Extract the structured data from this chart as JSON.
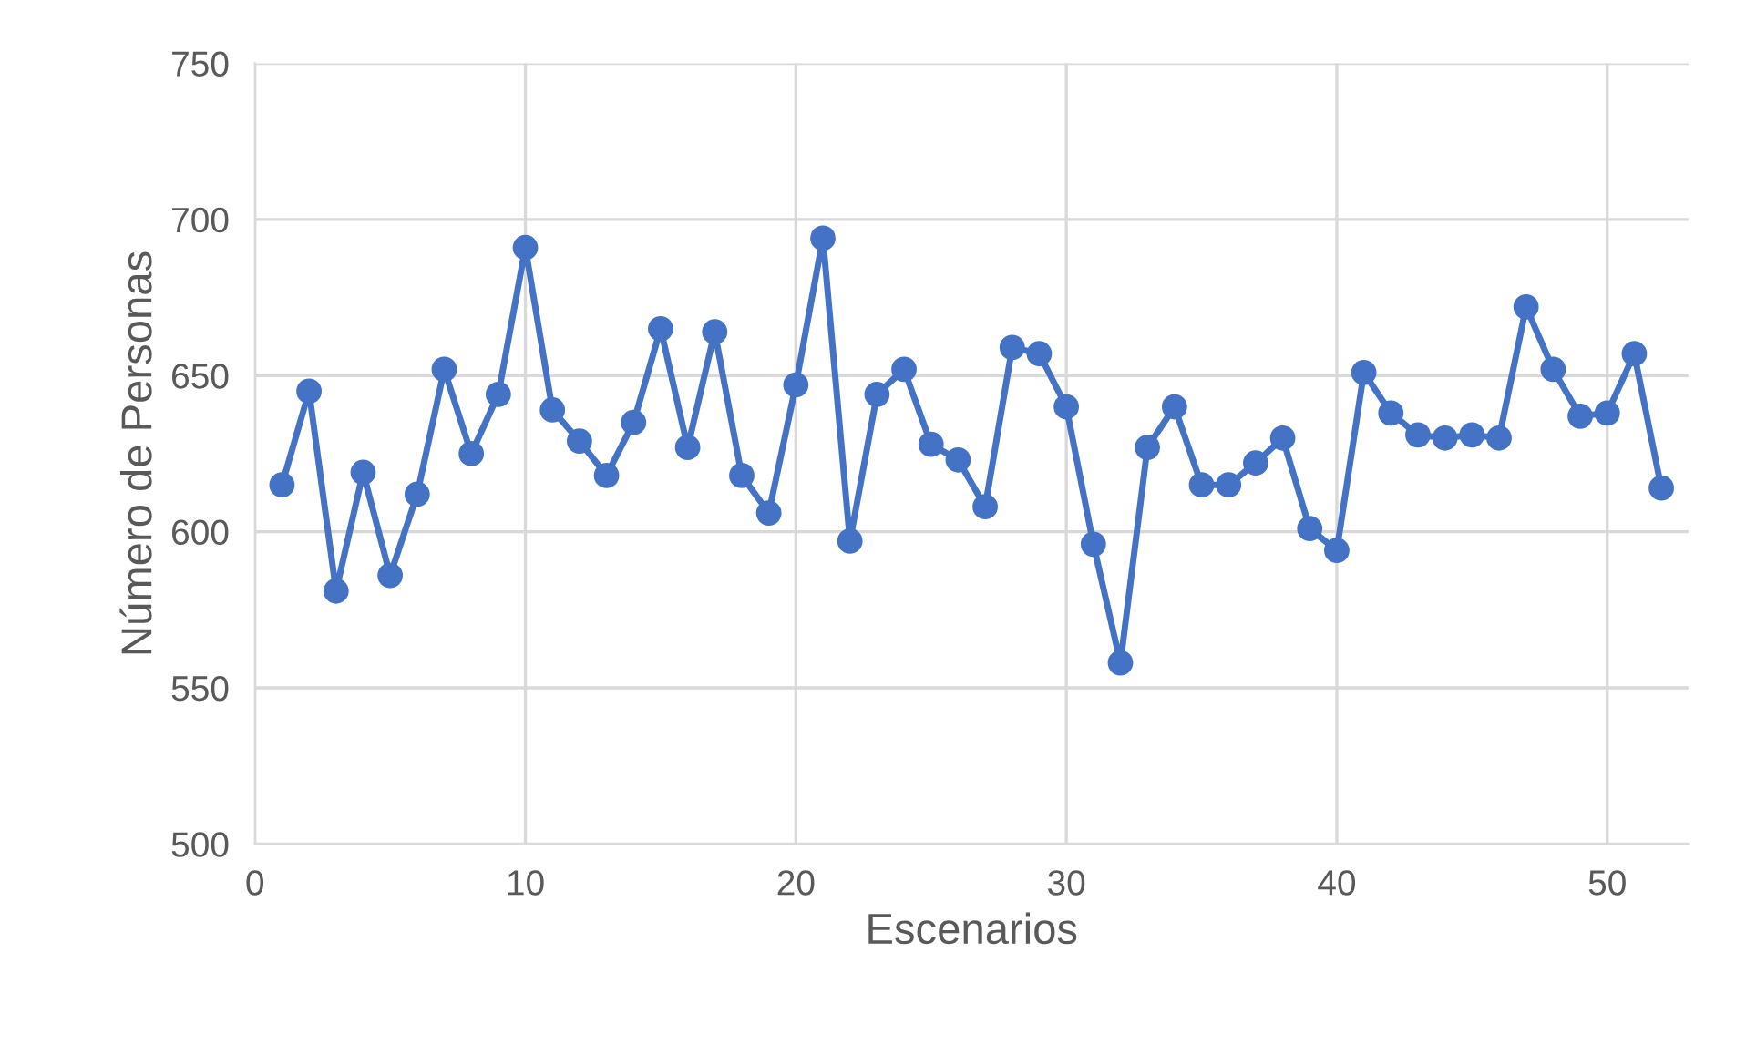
{
  "chart_data": {
    "type": "line",
    "xlabel": "Escenarios",
    "ylabel": "Número de Personas",
    "x": [
      1,
      2,
      3,
      4,
      5,
      6,
      7,
      8,
      9,
      10,
      11,
      12,
      13,
      14,
      15,
      16,
      17,
      18,
      19,
      20,
      21,
      22,
      23,
      24,
      25,
      26,
      27,
      28,
      29,
      30,
      31,
      32,
      33,
      34,
      35,
      36,
      37,
      38,
      39,
      40,
      41,
      42,
      43,
      44,
      45,
      46,
      47,
      48,
      49,
      50,
      51,
      52
    ],
    "series": [
      {
        "color": "#4472c4",
        "values": [
          615,
          645,
          581,
          619,
          586,
          612,
          652,
          625,
          644,
          691,
          639,
          629,
          618,
          635,
          665,
          627,
          664,
          618,
          606,
          647,
          694,
          597,
          644,
          652,
          628,
          623,
          608,
          659,
          657,
          640,
          596,
          558,
          627,
          640,
          615,
          615,
          622,
          630,
          601,
          594,
          651,
          638,
          631,
          630,
          631,
          630,
          672,
          652,
          637,
          638,
          657,
          614
        ]
      }
    ],
    "xlim": [
      0,
      53
    ],
    "xticks": [
      0,
      10,
      20,
      30,
      40,
      50
    ],
    "ylim": [
      500,
      750
    ],
    "yticks": [
      500,
      550,
      600,
      650,
      700,
      750
    ],
    "grid": true,
    "marker": "circle",
    "line_style": "solid"
  }
}
